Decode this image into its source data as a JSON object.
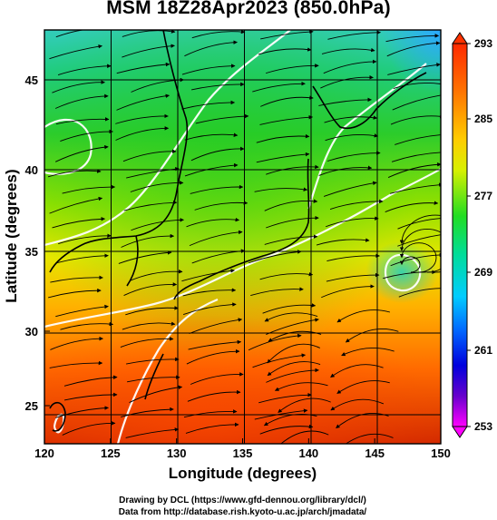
{
  "title": "MSM 18Z28Apr2023 (850.0hPa)",
  "axes": {
    "xlabel": "Longitude (degrees)",
    "ylabel": "Latitude  (degrees)",
    "x_ticks": [
      "120",
      "125",
      "130",
      "135",
      "140",
      "145",
      "150"
    ],
    "y_ticks": [
      "25",
      "30",
      "35",
      "40",
      "45"
    ]
  },
  "colorbar": {
    "labels": [
      "293",
      "285",
      "277",
      "269",
      "261",
      "253"
    ],
    "colors": [
      "#ff3300",
      "#ff7a00",
      "#ffbb00",
      "#e8e800",
      "#99e600",
      "#33cc33",
      "#00cc99",
      "#00ccff",
      "#0088ff",
      "#0033ff",
      "#3300cc",
      "#9900cc",
      "#ff00ff"
    ]
  },
  "footer": {
    "line1": "Drawing by DCL (https://www.gfd-dennou.org/library/dcl/)",
    "line2": "Data from http://database.rish.kyoto-u.ac.jp/arch/jmadata/"
  }
}
